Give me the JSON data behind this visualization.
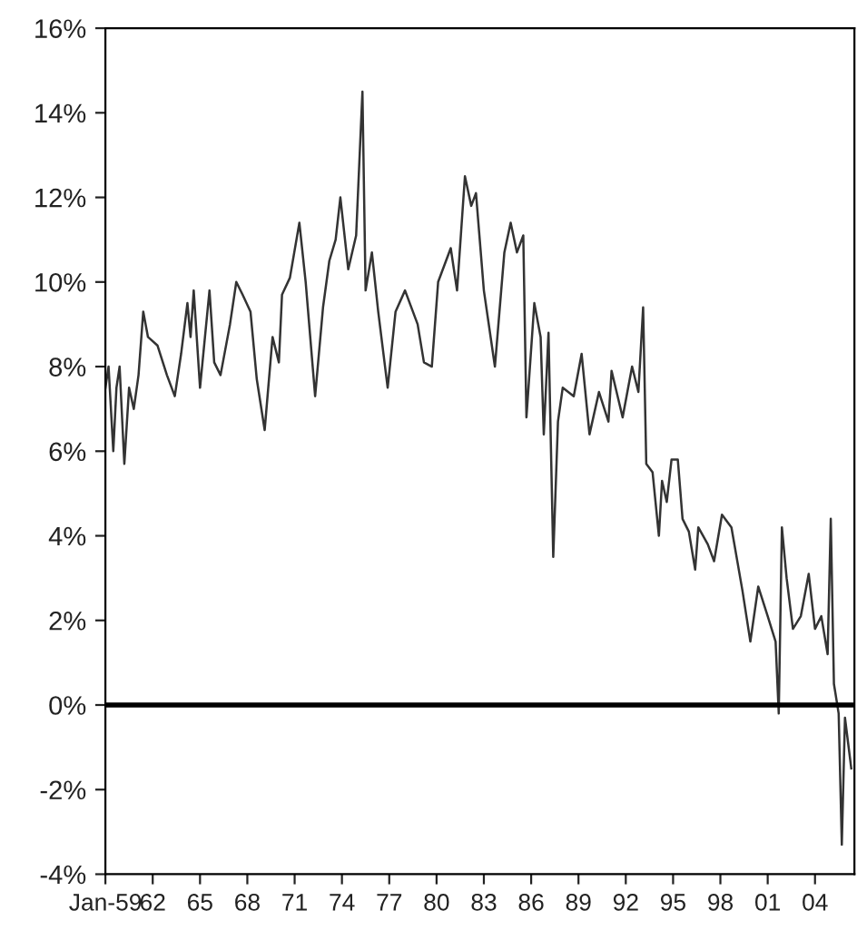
{
  "chart_data": {
    "type": "line",
    "x": [
      1959.0,
      1959.2,
      1959.5,
      1959.7,
      1959.9,
      1960.2,
      1960.5,
      1960.8,
      1961.1,
      1961.4,
      1961.7,
      1962.3,
      1962.9,
      1963.4,
      1963.8,
      1964.2,
      1964.4,
      1964.6,
      1965.0,
      1965.6,
      1965.9,
      1966.3,
      1966.9,
      1967.3,
      1967.7,
      1968.2,
      1968.6,
      1969.1,
      1969.6,
      1970.0,
      1970.2,
      1970.7,
      1971.3,
      1971.7,
      1972.3,
      1972.8,
      1973.2,
      1973.6,
      1973.9,
      1974.4,
      1974.9,
      1975.3,
      1975.5,
      1975.9,
      1976.3,
      1976.9,
      1977.4,
      1978.0,
      1978.8,
      1979.2,
      1979.7,
      1980.1,
      1980.9,
      1981.3,
      1981.8,
      1982.2,
      1982.5,
      1983.0,
      1983.7,
      1984.3,
      1984.7,
      1985.1,
      1985.5,
      1985.7,
      1986.2,
      1986.6,
      1986.8,
      1987.1,
      1987.4,
      1987.7,
      1988.0,
      1988.7,
      1989.2,
      1989.7,
      1990.3,
      1990.9,
      1991.1,
      1991.8,
      1992.4,
      1992.8,
      1993.1,
      1993.3,
      1993.7,
      1994.1,
      1994.3,
      1994.6,
      1994.9,
      1995.3,
      1995.6,
      1996.0,
      1996.4,
      1996.6,
      1997.2,
      1997.6,
      1998.1,
      1998.7,
      1999.4,
      1999.9,
      2000.4,
      2001.0,
      2001.5,
      2001.7,
      2001.9,
      2002.2,
      2002.6,
      2003.1,
      2003.6,
      2004.0,
      2004.4,
      2004.8,
      2005.0,
      2005.2,
      2005.5,
      2005.7,
      2005.9,
      2006.3
    ],
    "series": [
      {
        "color": "#333333",
        "values": [
          7.5,
          8.0,
          6.0,
          7.5,
          8.0,
          5.7,
          7.5,
          7.0,
          7.8,
          9.3,
          8.7,
          8.5,
          7.8,
          7.3,
          8.3,
          9.5,
          8.7,
          9.8,
          7.5,
          9.8,
          8.1,
          7.8,
          9.0,
          10.0,
          9.7,
          9.3,
          7.7,
          6.5,
          8.7,
          8.1,
          9.7,
          10.1,
          11.4,
          10.0,
          7.3,
          9.4,
          10.5,
          11.0,
          12.0,
          10.3,
          11.1,
          14.5,
          9.8,
          10.7,
          9.3,
          7.5,
          9.3,
          9.8,
          9.0,
          8.1,
          8.0,
          10.0,
          10.8,
          9.8,
          12.5,
          11.8,
          12.1,
          9.8,
          8.0,
          10.7,
          11.4,
          10.7,
          11.1,
          6.8,
          9.5,
          8.7,
          6.4,
          8.8,
          3.5,
          6.7,
          7.5,
          7.3,
          8.3,
          6.4,
          7.4,
          6.7,
          7.9,
          6.8,
          8.0,
          7.4,
          9.4,
          5.7,
          5.5,
          4.0,
          5.3,
          4.8,
          5.8,
          5.8,
          4.4,
          4.1,
          3.2,
          4.2,
          3.8,
          3.4,
          4.5,
          4.2,
          2.7,
          1.5,
          2.8,
          2.1,
          1.5,
          -0.2,
          4.2,
          3.0,
          1.8,
          2.1,
          3.1,
          1.8,
          2.1,
          1.2,
          4.4,
          0.5,
          -0.2,
          -3.3,
          -0.3,
          -1.5
        ]
      }
    ],
    "xlim": [
      1959,
      2006.5
    ],
    "xticks": [
      {
        "value": 1959,
        "label": "Jan-59"
      },
      {
        "value": 1962,
        "label": "62"
      },
      {
        "value": 1965,
        "label": "65"
      },
      {
        "value": 1968,
        "label": "68"
      },
      {
        "value": 1971,
        "label": "71"
      },
      {
        "value": 1974,
        "label": "74"
      },
      {
        "value": 1977,
        "label": "77"
      },
      {
        "value": 1980,
        "label": "80"
      },
      {
        "value": 1983,
        "label": "83"
      },
      {
        "value": 1986,
        "label": "86"
      },
      {
        "value": 1989,
        "label": "89"
      },
      {
        "value": 1992,
        "label": "92"
      },
      {
        "value": 1995,
        "label": "95"
      },
      {
        "value": 1998,
        "label": "98"
      },
      {
        "value": 2001,
        "label": "01"
      },
      {
        "value": 2004,
        "label": "04"
      }
    ],
    "ylim": [
      -4,
      16
    ],
    "yticks": [
      {
        "value": -4,
        "label": "-4%"
      },
      {
        "value": -2,
        "label": "-2%"
      },
      {
        "value": 0,
        "label": "0%"
      },
      {
        "value": 2,
        "label": "2%"
      },
      {
        "value": 4,
        "label": "4%"
      },
      {
        "value": 6,
        "label": "6%"
      },
      {
        "value": 8,
        "label": "8%"
      },
      {
        "value": 10,
        "label": "10%"
      },
      {
        "value": 12,
        "label": "12%"
      },
      {
        "value": 14,
        "label": "14%"
      },
      {
        "value": 16,
        "label": "16%"
      }
    ],
    "ref_lines": [
      {
        "axis": "y",
        "value": 0,
        "color": "#000000"
      }
    ],
    "grid": false,
    "legend": false
  }
}
